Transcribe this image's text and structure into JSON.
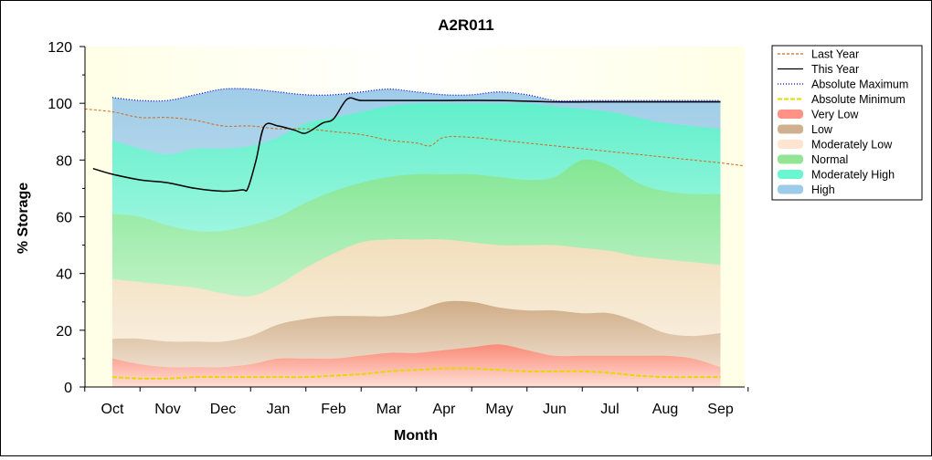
{
  "chart_data": {
    "type": "area",
    "title": "A2R011",
    "xlabel": "Month",
    "ylabel": "% Storage",
    "ylim": [
      0,
      120
    ],
    "yticks": [
      0,
      20,
      40,
      60,
      80,
      100,
      120
    ],
    "categories": [
      "Oct",
      "Nov",
      "Dec",
      "Jan",
      "Feb",
      "Mar",
      "Apr",
      "May",
      "Jun",
      "Jul",
      "Aug",
      "Sep"
    ],
    "legend_position": "right",
    "legend": [
      {
        "label": "Last Year",
        "kind": "line",
        "color": "#d2691e",
        "dash": "3,2"
      },
      {
        "label": "This Year",
        "kind": "line",
        "color": "#000000",
        "dash": ""
      },
      {
        "label": "Absolute Maximum",
        "kind": "line",
        "color": "#0000cd",
        "dash": "1,2"
      },
      {
        "label": "Absolute Minimum",
        "kind": "line",
        "color": "#e6d800",
        "dash": "5,2"
      },
      {
        "label": "Very Low",
        "kind": "band",
        "color": "#ff7f6e"
      },
      {
        "label": "Low",
        "kind": "band",
        "color": "#c8a27a"
      },
      {
        "label": "Moderately Low",
        "kind": "band",
        "color": "#ffe0c8"
      },
      {
        "label": "Normal",
        "kind": "band",
        "color": "#7fe07f"
      },
      {
        "label": "Moderately High",
        "kind": "band",
        "color": "#50f5c8"
      },
      {
        "label": "High",
        "kind": "band",
        "color": "#8cc2e6"
      }
    ],
    "band_x": [
      0,
      0.5,
      1,
      1.5,
      2,
      2.5,
      3,
      3.5,
      4,
      4.5,
      5,
      5.5,
      6,
      6.5,
      7,
      7.5,
      8,
      8.5,
      9,
      9.5,
      10,
      10.5,
      11
    ],
    "band_boundaries": {
      "very_low_top": [
        10,
        8,
        7,
        7,
        7,
        8,
        10,
        10,
        10,
        11,
        12,
        12,
        13,
        14,
        15,
        13,
        11,
        11,
        11,
        11,
        11,
        10,
        7
      ],
      "low_top": [
        17,
        17,
        16,
        16,
        16,
        18,
        22,
        24,
        25,
        25,
        25,
        27,
        30,
        30,
        28,
        27,
        27,
        26,
        26,
        23,
        19,
        18,
        19
      ],
      "moderately_low_top": [
        38,
        37,
        36,
        35,
        33,
        32,
        36,
        42,
        47,
        51,
        52,
        52,
        52,
        51,
        50,
        50,
        50,
        49,
        48,
        46,
        45,
        44,
        43
      ],
      "normal_top": [
        61,
        60,
        57,
        55,
        55,
        57,
        60,
        65,
        69,
        72,
        74,
        75,
        75,
        75,
        74,
        73,
        74,
        80,
        78,
        72,
        69,
        68,
        68
      ],
      "moderately_high_top": [
        87,
        84,
        82,
        84,
        84,
        85,
        88,
        93,
        95,
        97,
        99,
        100,
        100,
        100,
        100,
        100,
        99,
        98,
        97,
        95,
        93,
        92,
        91
      ],
      "high_top": [
        102,
        101,
        101,
        103,
        105,
        105,
        104,
        103,
        103,
        104,
        105,
        104,
        103,
        103,
        104,
        103,
        101,
        101,
        101,
        101,
        101,
        101,
        101
      ]
    },
    "series": [
      {
        "name": "Last Year",
        "x": [
          -0.5,
          0,
          0.5,
          1,
          1.5,
          2,
          2.5,
          3,
          3.5,
          4,
          4.5,
          5,
          5.5,
          5.75,
          6,
          6.5,
          7,
          7.5,
          8,
          8.5,
          9,
          9.5,
          10,
          10.5,
          11,
          11.4
        ],
        "values": [
          98,
          97,
          95,
          95,
          94,
          92,
          92,
          91,
          91,
          90,
          89,
          87,
          86,
          85,
          88,
          88,
          87,
          86,
          85,
          84,
          83,
          82,
          81,
          80,
          79,
          78
        ]
      },
      {
        "name": "This Year",
        "x": [
          -0.35,
          0,
          0.5,
          1,
          1.5,
          2,
          2.35,
          2.45,
          2.6,
          2.75,
          3.0,
          3.3,
          3.5,
          3.8,
          4.0,
          4.25,
          4.5,
          5.0,
          5.5,
          6.0,
          7.0,
          8.0,
          9.0,
          10.0,
          11.0
        ],
        "values": [
          77,
          75,
          73,
          72,
          70,
          69,
          69.5,
          70,
          80,
          92,
          92,
          90.5,
          89.5,
          93,
          94.5,
          101.5,
          101,
          101,
          101,
          101,
          101,
          100.5,
          100.5,
          100.5,
          100.5
        ]
      },
      {
        "name": "Absolute Maximum",
        "x": [
          0,
          0.5,
          1,
          1.5,
          2,
          2.5,
          3,
          3.5,
          4,
          4.5,
          5,
          5.5,
          6,
          6.5,
          7,
          7.5,
          8,
          8.5,
          9,
          9.5,
          10,
          10.5,
          11
        ],
        "values": [
          102,
          101,
          101,
          103,
          105,
          105,
          104,
          103,
          103,
          104,
          105,
          104,
          103,
          103,
          104,
          103,
          101,
          101,
          101,
          101,
          101,
          101,
          101
        ]
      },
      {
        "name": "Absolute Minimum",
        "x": [
          0,
          0.5,
          1,
          1.5,
          2,
          2.5,
          3,
          3.5,
          4,
          4.5,
          5,
          5.5,
          6,
          6.5,
          7,
          7.5,
          8,
          8.5,
          9,
          9.5,
          10,
          10.5,
          11
        ],
        "values": [
          3.5,
          3,
          3,
          3.5,
          3.5,
          3.5,
          3.5,
          3.5,
          4,
          4.5,
          5.5,
          6,
          6.5,
          6.5,
          6,
          5.5,
          5.5,
          5.5,
          5,
          4,
          3.5,
          3.5,
          3.5
        ]
      }
    ]
  }
}
